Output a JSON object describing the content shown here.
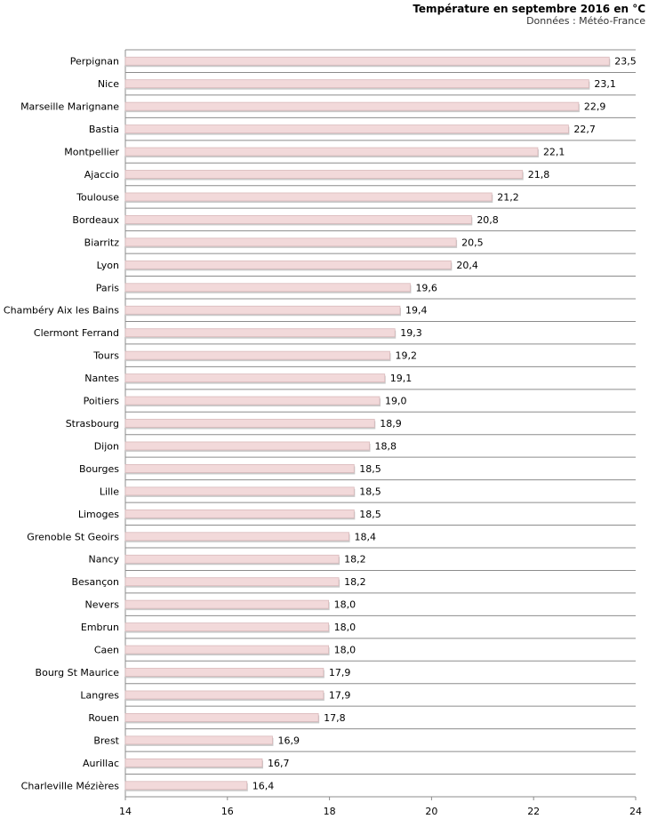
{
  "chart_data": {
    "type": "bar",
    "orientation": "horizontal",
    "title": "Température en septembre 2016 en °C",
    "subtitle": "Données : Météo-France",
    "xlabel": "",
    "ylabel": "",
    "xlim": [
      14,
      24
    ],
    "xticks": [
      14,
      16,
      18,
      20,
      22,
      24
    ],
    "grid": "horizontal lines between categories",
    "bar_color": "#f2d9da",
    "bar_stroke": "#d9b9bb",
    "categories": [
      "Perpignan",
      "Nice",
      "Marseille Marignane",
      "Bastia",
      "Montpellier",
      "Ajaccio",
      "Toulouse",
      "Bordeaux",
      "Biarritz",
      "Lyon",
      "Paris",
      "Chambéry Aix les Bains",
      "Clermont Ferrand",
      "Tours",
      "Nantes",
      "Poitiers",
      "Strasbourg",
      "Dijon",
      "Bourges",
      "Lille",
      "Limoges",
      "Grenoble St Geoirs",
      "Nancy",
      "Besançon",
      "Nevers",
      "Embrun",
      "Caen",
      "Bourg St Maurice",
      "Langres",
      "Rouen",
      "Brest",
      "Aurillac",
      "Charleville Mézières"
    ],
    "values": [
      23.5,
      23.1,
      22.9,
      22.7,
      22.1,
      21.8,
      21.2,
      20.8,
      20.5,
      20.4,
      19.6,
      19.4,
      19.3,
      19.2,
      19.1,
      19.0,
      18.9,
      18.8,
      18.5,
      18.5,
      18.5,
      18.4,
      18.2,
      18.2,
      18.0,
      18.0,
      18.0,
      17.9,
      17.9,
      17.8,
      16.9,
      16.7,
      16.4
    ],
    "value_labels": [
      "23,5",
      "23,1",
      "22,9",
      "22,7",
      "22,1",
      "21,8",
      "21,2",
      "20,8",
      "20,5",
      "20,4",
      "19,6",
      "19,4",
      "19,3",
      "19,2",
      "19,1",
      "19,0",
      "18,9",
      "18,8",
      "18,5",
      "18,5",
      "18,5",
      "18,4",
      "18,2",
      "18,2",
      "18,0",
      "18,0",
      "18,0",
      "17,9",
      "17,9",
      "17,8",
      "16,9",
      "16,7",
      "16,4"
    ]
  }
}
